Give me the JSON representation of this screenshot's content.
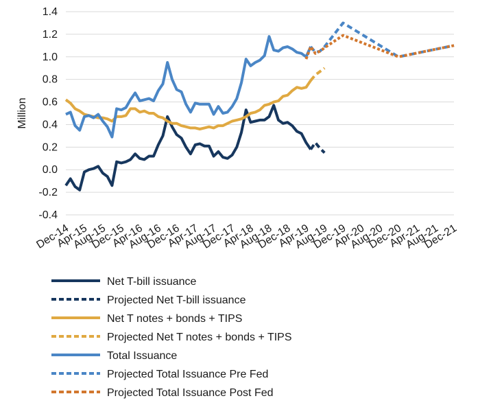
{
  "chart_data": {
    "type": "line",
    "title": "",
    "xlabel": "",
    "ylabel": "Million",
    "ylim": [
      -0.4,
      1.4
    ],
    "yticks": [
      -0.4,
      -0.2,
      0.0,
      0.2,
      0.4,
      0.6,
      0.8,
      1.0,
      1.2,
      1.4
    ],
    "ytick_labels": [
      "-0.4",
      "-0.2",
      "0.0",
      "0.2",
      "0.4",
      "0.6",
      "0.8",
      "1.0",
      "1.2",
      "1.4"
    ],
    "x_range": [
      "2014-12",
      "2021-12"
    ],
    "xtick_labels": [
      "Dec-14",
      "Apr-15",
      "Aug-15",
      "Dec-15",
      "Apr-16",
      "Aug-16",
      "Dec-16",
      "Apr-17",
      "Aug-17",
      "Dec-17",
      "Apr-18",
      "Aug-18",
      "Dec-18",
      "Apr-19",
      "Aug-19",
      "Dec-19",
      "Apr-20",
      "Aug-20",
      "Dec-20",
      "Apr-21",
      "Aug-21",
      "Dec-21"
    ],
    "grid": "horizontal",
    "legend_position": "bottom",
    "series": [
      {
        "name": "Net T-bill issuance",
        "color": "#17375e",
        "style": "solid",
        "x": [
          "2014-12",
          "2015-01",
          "2015-02",
          "2015-03",
          "2015-04",
          "2015-05",
          "2015-06",
          "2015-07",
          "2015-08",
          "2015-09",
          "2015-10",
          "2015-11",
          "2015-12",
          "2016-01",
          "2016-02",
          "2016-03",
          "2016-04",
          "2016-05",
          "2016-06",
          "2016-07",
          "2016-08",
          "2016-09",
          "2016-10",
          "2016-11",
          "2016-12",
          "2017-01",
          "2017-02",
          "2017-03",
          "2017-04",
          "2017-05",
          "2017-06",
          "2017-07",
          "2017-08",
          "2017-09",
          "2017-10",
          "2017-11",
          "2017-12",
          "2018-01",
          "2018-02",
          "2018-03",
          "2018-04",
          "2018-05",
          "2018-06",
          "2018-07",
          "2018-08",
          "2018-09",
          "2018-10",
          "2018-11",
          "2018-12",
          "2019-01",
          "2019-02",
          "2019-03",
          "2019-04",
          "2019-05"
        ],
        "y": [
          -0.14,
          -0.08,
          -0.15,
          -0.18,
          -0.02,
          0.0,
          0.01,
          0.03,
          -0.03,
          -0.06,
          -0.14,
          0.07,
          0.06,
          0.07,
          0.09,
          0.14,
          0.1,
          0.09,
          0.12,
          0.12,
          0.22,
          0.3,
          0.47,
          0.38,
          0.31,
          0.28,
          0.2,
          0.14,
          0.22,
          0.23,
          0.21,
          0.21,
          0.12,
          0.16,
          0.11,
          0.1,
          0.13,
          0.2,
          0.33,
          0.53,
          0.42,
          0.43,
          0.44,
          0.44,
          0.47,
          0.57,
          0.44,
          0.41,
          0.42,
          0.39,
          0.34,
          0.32,
          0.24,
          0.18
        ]
      },
      {
        "name": "Projected Net T-bill issuance",
        "color": "#17375e",
        "style": "dashed",
        "x": [
          "2019-05",
          "2019-06",
          "2019-07",
          "2019-08"
        ],
        "y": [
          0.18,
          0.24,
          0.19,
          0.15
        ]
      },
      {
        "name": "Net T notes + bonds + TIPS",
        "color": "#e0a942",
        "style": "solid",
        "x": [
          "2014-12",
          "2015-01",
          "2015-02",
          "2015-03",
          "2015-04",
          "2015-05",
          "2015-06",
          "2015-07",
          "2015-08",
          "2015-09",
          "2015-10",
          "2015-11",
          "2015-12",
          "2016-01",
          "2016-02",
          "2016-03",
          "2016-04",
          "2016-05",
          "2016-06",
          "2016-07",
          "2016-08",
          "2016-09",
          "2016-10",
          "2016-11",
          "2016-12",
          "2017-01",
          "2017-02",
          "2017-03",
          "2017-04",
          "2017-05",
          "2017-06",
          "2017-07",
          "2017-08",
          "2017-09",
          "2017-10",
          "2017-11",
          "2017-12",
          "2018-01",
          "2018-02",
          "2018-03",
          "2018-04",
          "2018-05",
          "2018-06",
          "2018-07",
          "2018-08",
          "2018-09",
          "2018-10",
          "2018-11",
          "2018-12",
          "2019-01",
          "2019-02",
          "2019-03",
          "2019-04",
          "2019-05"
        ],
        "y": [
          0.62,
          0.59,
          0.54,
          0.52,
          0.49,
          0.48,
          0.47,
          0.46,
          0.46,
          0.45,
          0.43,
          0.47,
          0.47,
          0.48,
          0.54,
          0.54,
          0.51,
          0.52,
          0.5,
          0.5,
          0.47,
          0.46,
          0.43,
          0.41,
          0.41,
          0.39,
          0.38,
          0.37,
          0.37,
          0.36,
          0.37,
          0.38,
          0.37,
          0.39,
          0.39,
          0.41,
          0.43,
          0.44,
          0.45,
          0.47,
          0.5,
          0.51,
          0.53,
          0.57,
          0.58,
          0.6,
          0.61,
          0.65,
          0.66,
          0.7,
          0.73,
          0.72,
          0.73,
          0.79
        ]
      },
      {
        "name": "Projected Net T notes + bonds + TIPS",
        "color": "#e0a942",
        "style": "dashed",
        "x": [
          "2019-05",
          "2019-06",
          "2019-07",
          "2019-08"
        ],
        "y": [
          0.79,
          0.84,
          0.87,
          0.9
        ]
      },
      {
        "name": "Total Issuance",
        "color": "#4a86c6",
        "style": "solid",
        "x": [
          "2014-12",
          "2015-01",
          "2015-02",
          "2015-03",
          "2015-04",
          "2015-05",
          "2015-06",
          "2015-07",
          "2015-08",
          "2015-09",
          "2015-10",
          "2015-11",
          "2015-12",
          "2016-01",
          "2016-02",
          "2016-03",
          "2016-04",
          "2016-05",
          "2016-06",
          "2016-07",
          "2016-08",
          "2016-09",
          "2016-10",
          "2016-11",
          "2016-12",
          "2017-01",
          "2017-02",
          "2017-03",
          "2017-04",
          "2017-05",
          "2017-06",
          "2017-07",
          "2017-08",
          "2017-09",
          "2017-10",
          "2017-11",
          "2017-12",
          "2018-01",
          "2018-02",
          "2018-03",
          "2018-04",
          "2018-05",
          "2018-06",
          "2018-07",
          "2018-08",
          "2018-09",
          "2018-10",
          "2018-11",
          "2018-12",
          "2019-01",
          "2019-02",
          "2019-03",
          "2019-04",
          "2019-05"
        ],
        "y": [
          0.49,
          0.51,
          0.39,
          0.35,
          0.47,
          0.48,
          0.46,
          0.49,
          0.43,
          0.38,
          0.29,
          0.54,
          0.53,
          0.55,
          0.62,
          0.68,
          0.61,
          0.62,
          0.63,
          0.61,
          0.7,
          0.76,
          0.95,
          0.8,
          0.71,
          0.69,
          0.58,
          0.51,
          0.59,
          0.58,
          0.58,
          0.58,
          0.49,
          0.56,
          0.5,
          0.51,
          0.56,
          0.63,
          0.77,
          0.98,
          0.92,
          0.95,
          0.97,
          1.01,
          1.18,
          1.06,
          1.05,
          1.08,
          1.09,
          1.07,
          1.04,
          1.03,
          1.0,
          1.09
        ]
      },
      {
        "name": "Projected Total Issuance Pre Fed",
        "color": "#4a86c6",
        "style": "dashed",
        "x": [
          "2019-05",
          "2019-06",
          "2019-07",
          "2019-08",
          "2019-12",
          "2020-12",
          "2021-12"
        ],
        "y": [
          1.09,
          1.04,
          1.05,
          1.09,
          1.3,
          1.0,
          1.1
        ]
      },
      {
        "name": "Projected Total Issuance Post Fed",
        "color": "#d2772e",
        "style": "dashed",
        "x": [
          "2019-04",
          "2019-05",
          "2019-06",
          "2019-07",
          "2019-08",
          "2019-12",
          "2020-12",
          "2021-12"
        ],
        "y": [
          0.98,
          1.09,
          1.03,
          1.05,
          1.08,
          1.19,
          1.0,
          1.1
        ]
      }
    ]
  },
  "legend": {
    "items": [
      {
        "label": "Net T-bill issuance",
        "color": "#17375e",
        "dash": "solid"
      },
      {
        "label": "Projected Net T-bill issuance",
        "color": "#17375e",
        "dash": "dashed"
      },
      {
        "label": "Net T notes + bonds + TIPS",
        "color": "#e0a942",
        "dash": "solid"
      },
      {
        "label": "Projected Net T notes + bonds + TIPS",
        "color": "#e0a942",
        "dash": "dashed"
      },
      {
        "label": "Total Issuance",
        "color": "#4a86c6",
        "dash": "solid"
      },
      {
        "label": "Projected Total Issuance Pre Fed",
        "color": "#4a86c6",
        "dash": "dashed"
      },
      {
        "label": "Projected Total Issuance Post Fed",
        "color": "#d2772e",
        "dash": "dashed"
      }
    ]
  }
}
